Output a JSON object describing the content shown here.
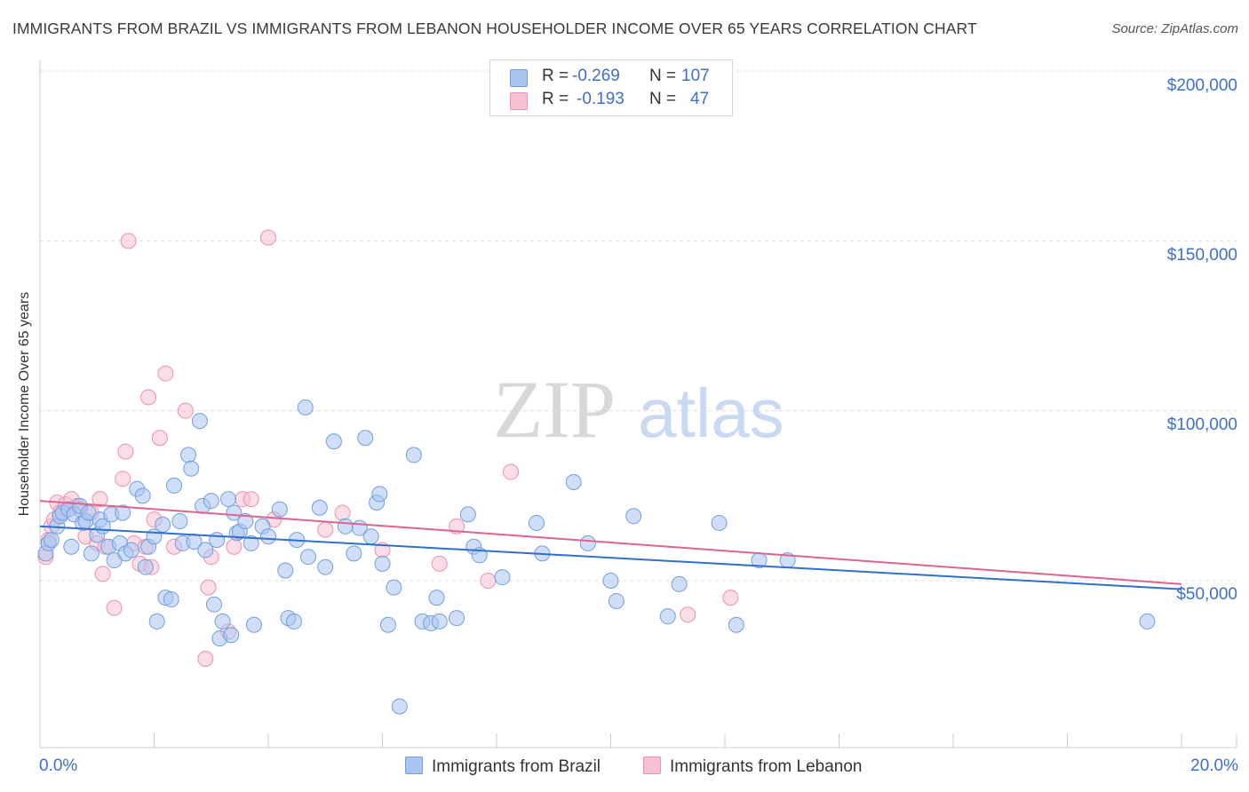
{
  "title": "IMMIGRANTS FROM BRAZIL VS IMMIGRANTS FROM LEBANON HOUSEHOLDER INCOME OVER 65 YEARS CORRELATION CHART",
  "source": "Source: ZipAtlas.com",
  "watermark": {
    "zip": "ZIP",
    "atlas": "atlas"
  },
  "legend": {
    "r_label": "R =",
    "n_label": "N =",
    "rows": [
      {
        "name": "Immigrants from Brazil",
        "r": "-0.269",
        "n": "107",
        "color": "#6f9fe0"
      },
      {
        "name": "Immigrants from Lebanon",
        "r": "-0.193",
        "n": "47",
        "color": "#ef8fb0"
      }
    ]
  },
  "colors": {
    "brazil_fill": "#a9c5f0",
    "brazil_stroke": "#6f9fe0",
    "brazil_line": "#2f6fd0",
    "lebanon_fill": "#f7c1d2",
    "lebanon_stroke": "#ef8fb0",
    "lebanon_line": "#e0628f",
    "grid": "#dedede",
    "tick_text": "#3d6fcc"
  },
  "chart_data": {
    "type": "scatter",
    "title": "IMMIGRANTS FROM BRAZIL VS IMMIGRANTS FROM LEBANON HOUSEHOLDER INCOME OVER 65 YEARS CORRELATION CHART",
    "xlabel": "",
    "ylabel": "Householder Income Over 65 years",
    "xlim": [
      0,
      20
    ],
    "ylim": [
      0,
      210000
    ],
    "x_tick_labels": [
      "0.0%",
      "20.0%"
    ],
    "y_ticks": [
      50000,
      100000,
      150000,
      200000
    ],
    "y_tick_labels": [
      "$50,000",
      "$100,000",
      "$150,000",
      "$200,000"
    ],
    "legend_position": "bottom",
    "series": [
      {
        "name": "Immigrants from Brazil",
        "trend": {
          "x": [
            0,
            20
          ],
          "y": [
            66000,
            47500
          ]
        },
        "points": [
          [
            0.1,
            58000
          ],
          [
            0.15,
            61000
          ],
          [
            0.2,
            62000
          ],
          [
            0.3,
            66000
          ],
          [
            0.35,
            69000
          ],
          [
            0.4,
            70000
          ],
          [
            0.5,
            71000
          ],
          [
            0.55,
            60000
          ],
          [
            0.6,
            69500
          ],
          [
            0.7,
            72000
          ],
          [
            0.75,
            67000
          ],
          [
            0.8,
            67500
          ],
          [
            0.85,
            70000
          ],
          [
            0.9,
            58000
          ],
          [
            1.0,
            63500
          ],
          [
            1.05,
            68000
          ],
          [
            1.1,
            66000
          ],
          [
            1.2,
            60000
          ],
          [
            1.25,
            69500
          ],
          [
            1.3,
            56000
          ],
          [
            1.4,
            61000
          ],
          [
            1.45,
            70000
          ],
          [
            1.5,
            58000
          ],
          [
            1.6,
            59000
          ],
          [
            1.7,
            77000
          ],
          [
            1.8,
            75000
          ],
          [
            1.85,
            54000
          ],
          [
            1.9,
            60000
          ],
          [
            2.0,
            63000
          ],
          [
            2.05,
            38000
          ],
          [
            2.15,
            66500
          ],
          [
            2.2,
            45000
          ],
          [
            2.3,
            44500
          ],
          [
            2.35,
            78000
          ],
          [
            2.45,
            67500
          ],
          [
            2.5,
            61000
          ],
          [
            2.6,
            87000
          ],
          [
            2.65,
            83000
          ],
          [
            2.7,
            61500
          ],
          [
            2.8,
            97000
          ],
          [
            2.85,
            72000
          ],
          [
            2.9,
            59000
          ],
          [
            3.0,
            73500
          ],
          [
            3.05,
            43000
          ],
          [
            3.1,
            62000
          ],
          [
            3.15,
            33000
          ],
          [
            3.2,
            38000
          ],
          [
            3.3,
            74000
          ],
          [
            3.35,
            34000
          ],
          [
            3.4,
            70000
          ],
          [
            3.45,
            64000
          ],
          [
            3.5,
            64500
          ],
          [
            3.6,
            67500
          ],
          [
            3.7,
            61000
          ],
          [
            3.75,
            37000
          ],
          [
            3.9,
            66000
          ],
          [
            4.0,
            63000
          ],
          [
            4.2,
            71000
          ],
          [
            4.3,
            53000
          ],
          [
            4.35,
            39000
          ],
          [
            4.45,
            38000
          ],
          [
            4.5,
            62000
          ],
          [
            4.65,
            101000
          ],
          [
            4.7,
            57000
          ],
          [
            4.9,
            71500
          ],
          [
            5.0,
            54000
          ],
          [
            5.15,
            91000
          ],
          [
            5.35,
            66000
          ],
          [
            5.5,
            58000
          ],
          [
            5.6,
            65500
          ],
          [
            5.7,
            92000
          ],
          [
            5.8,
            63000
          ],
          [
            5.9,
            73000
          ],
          [
            5.95,
            75500
          ],
          [
            6.0,
            55000
          ],
          [
            6.1,
            37000
          ],
          [
            6.2,
            48000
          ],
          [
            6.3,
            13000
          ],
          [
            6.55,
            87000
          ],
          [
            6.7,
            38000
          ],
          [
            6.85,
            37500
          ],
          [
            6.95,
            45000
          ],
          [
            7.0,
            38000
          ],
          [
            7.3,
            39000
          ],
          [
            7.5,
            69500
          ],
          [
            7.6,
            60000
          ],
          [
            7.7,
            57500
          ],
          [
            8.1,
            51000
          ],
          [
            8.7,
            67000
          ],
          [
            8.8,
            58000
          ],
          [
            9.35,
            79000
          ],
          [
            9.6,
            61000
          ],
          [
            10.0,
            50000
          ],
          [
            10.1,
            44000
          ],
          [
            10.4,
            69000
          ],
          [
            11.0,
            39500
          ],
          [
            11.2,
            49000
          ],
          [
            11.9,
            67000
          ],
          [
            12.2,
            37000
          ],
          [
            12.6,
            56000
          ],
          [
            13.1,
            56000
          ],
          [
            19.4,
            38000
          ]
        ]
      },
      {
        "name": "Immigrants from Lebanon",
        "trend": {
          "x": [
            0,
            20
          ],
          "y": [
            73500,
            49000
          ]
        },
        "points": [
          [
            0.1,
            57000
          ],
          [
            0.15,
            62000
          ],
          [
            0.2,
            66000
          ],
          [
            0.25,
            68000
          ],
          [
            0.3,
            73000
          ],
          [
            0.35,
            70000
          ],
          [
            0.45,
            72500
          ],
          [
            0.55,
            74000
          ],
          [
            0.65,
            72000
          ],
          [
            0.7,
            71000
          ],
          [
            0.8,
            63000
          ],
          [
            0.9,
            70000
          ],
          [
            1.0,
            61000
          ],
          [
            1.05,
            74000
          ],
          [
            1.1,
            52000
          ],
          [
            1.15,
            60000
          ],
          [
            1.3,
            42000
          ],
          [
            1.45,
            80000
          ],
          [
            1.5,
            88000
          ],
          [
            1.55,
            150000
          ],
          [
            1.65,
            61000
          ],
          [
            1.75,
            55000
          ],
          [
            1.85,
            60000
          ],
          [
            1.9,
            104000
          ],
          [
            1.95,
            54000
          ],
          [
            2.0,
            68000
          ],
          [
            2.1,
            92000
          ],
          [
            2.2,
            111000
          ],
          [
            2.35,
            60000
          ],
          [
            2.55,
            100000
          ],
          [
            2.9,
            27000
          ],
          [
            2.95,
            48000
          ],
          [
            3.0,
            57000
          ],
          [
            3.3,
            35000
          ],
          [
            3.4,
            60000
          ],
          [
            3.55,
            74000
          ],
          [
            3.7,
            74000
          ],
          [
            4.0,
            151000
          ],
          [
            4.1,
            68000
          ],
          [
            5.0,
            65000
          ],
          [
            5.3,
            70000
          ],
          [
            6.0,
            59000
          ],
          [
            7.0,
            55000
          ],
          [
            7.3,
            66000
          ],
          [
            7.85,
            50000
          ],
          [
            8.25,
            82000
          ],
          [
            11.35,
            40000
          ],
          [
            12.1,
            45000
          ]
        ]
      }
    ]
  }
}
